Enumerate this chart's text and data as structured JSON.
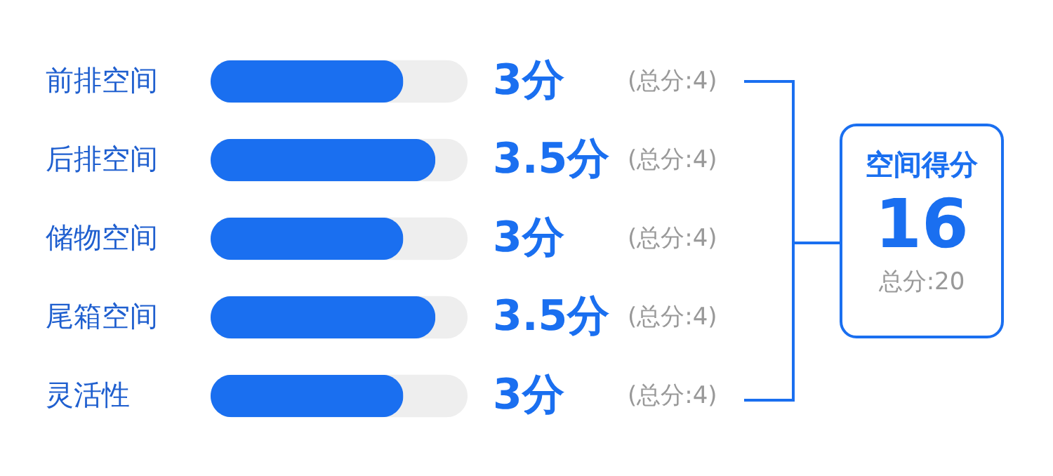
{
  "chart_data": {
    "type": "bar",
    "orientation": "horizontal",
    "categories": [
      "前排空间",
      "后排空间",
      "储物空间",
      "尾箱空间",
      "灵活性"
    ],
    "values": [
      3,
      3.5,
      3,
      3.5,
      3
    ],
    "color": "#1a6ff0",
    "xlim": [
      0,
      4
    ],
    "tick_labels": "y",
    "value_labels": [
      "3分",
      "3.5分",
      "3分",
      "3.5分",
      "3分"
    ],
    "annotations": [
      "(总分:4)",
      "(总分:4)",
      "(总分:4)",
      "(总分:4)",
      "(总分:4)",
      "空间得分",
      "16",
      "总分:20"
    ]
  }
}
